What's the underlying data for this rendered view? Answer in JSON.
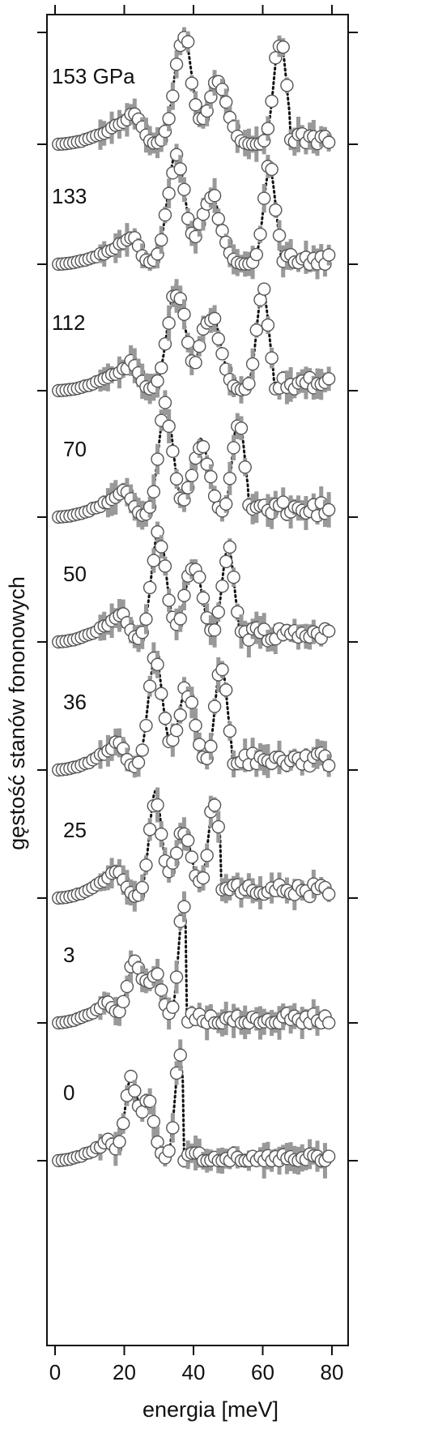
{
  "chart_data": {
    "type": "scatter",
    "title": "",
    "xlabel": "energia [meV]",
    "ylabel": "gęstość stanów fononowych",
    "xlim": [
      0,
      80
    ],
    "x_ticks": [
      "0",
      "20",
      "40",
      "60",
      "80"
    ],
    "grid": false,
    "legend": "none",
    "series_style": {
      "points": "open circles with grey error bars",
      "fit": "black dotted line"
    },
    "colors": {
      "points_edge": "#555555",
      "error_bars": "#999999",
      "fit": "#111111"
    },
    "series": [
      {
        "name": "153 GPa",
        "label": "153 GPa",
        "peaks": [
          {
            "x": 23,
            "y": 0.28,
            "w": 3
          },
          {
            "x": 37,
            "y": 1.0,
            "w": 3.5
          },
          {
            "x": 47,
            "y": 0.55,
            "w": 4
          },
          {
            "x": 65,
            "y": 0.95,
            "w": 2.5
          }
        ],
        "cutoff": 68,
        "tail": 0.05
      },
      {
        "name": "133",
        "label": "133",
        "peaks": [
          {
            "x": 22,
            "y": 0.25,
            "w": 3
          },
          {
            "x": 35,
            "y": 1.0,
            "w": 3.5
          },
          {
            "x": 45,
            "y": 0.62,
            "w": 4
          },
          {
            "x": 62,
            "y": 0.85,
            "w": 2.5
          }
        ],
        "cutoff": 65,
        "tail": 0.05
      },
      {
        "name": "112",
        "label": "112",
        "peaks": [
          {
            "x": 22,
            "y": 0.25,
            "w": 3
          },
          {
            "x": 35,
            "y": 0.95,
            "w": 3.5
          },
          {
            "x": 45,
            "y": 0.7,
            "w": 4
          },
          {
            "x": 60,
            "y": 0.9,
            "w": 2.5
          }
        ],
        "cutoff": 63,
        "tail": 0.07
      },
      {
        "name": "70",
        "label": "70",
        "peaks": [
          {
            "x": 20,
            "y": 0.25,
            "w": 3
          },
          {
            "x": 32,
            "y": 1.0,
            "w": 3
          },
          {
            "x": 42,
            "y": 0.7,
            "w": 3.5
          },
          {
            "x": 53,
            "y": 0.9,
            "w": 2.5
          }
        ],
        "cutoff": 56,
        "tail": 0.07
      },
      {
        "name": "50",
        "label": "50",
        "peaks": [
          {
            "x": 19,
            "y": 0.25,
            "w": 3
          },
          {
            "x": 30,
            "y": 1.0,
            "w": 3
          },
          {
            "x": 40,
            "y": 0.7,
            "w": 3.5
          },
          {
            "x": 50,
            "y": 0.85,
            "w": 2.5
          }
        ],
        "cutoff": 53,
        "tail": 0.08
      },
      {
        "name": "36",
        "label": "36",
        "peaks": [
          {
            "x": 18,
            "y": 0.25,
            "w": 3
          },
          {
            "x": 29,
            "y": 1.0,
            "w": 3
          },
          {
            "x": 38,
            "y": 0.72,
            "w": 3.5
          },
          {
            "x": 48,
            "y": 0.95,
            "w": 2.5
          }
        ],
        "cutoff": 51,
        "tail": 0.09
      },
      {
        "name": "25",
        "label": "25",
        "peaks": [
          {
            "x": 18,
            "y": 0.25,
            "w": 3
          },
          {
            "x": 29,
            "y": 0.95,
            "w": 2.5
          },
          {
            "x": 37,
            "y": 0.6,
            "w": 3.5
          },
          {
            "x": 46,
            "y": 0.85,
            "w": 2.5
          }
        ],
        "cutoff": 48,
        "tail": 0.07
      },
      {
        "name": "3",
        "label": "3",
        "peaks": [
          {
            "x": 15,
            "y": 0.18,
            "w": 3
          },
          {
            "x": 23,
            "y": 0.55,
            "w": 3
          },
          {
            "x": 29,
            "y": 0.42,
            "w": 3
          },
          {
            "x": 37,
            "y": 1.0,
            "w": 2
          }
        ],
        "cutoff": 38,
        "tail": 0.03
      },
      {
        "name": "0",
        "label": "0",
        "peaks": [
          {
            "x": 15,
            "y": 0.18,
            "w": 3
          },
          {
            "x": 22,
            "y": 0.75,
            "w": 2.5
          },
          {
            "x": 27,
            "y": 0.55,
            "w": 2.5
          },
          {
            "x": 36,
            "y": 0.9,
            "w": 2
          }
        ],
        "cutoff": 37,
        "tail": 0.01
      }
    ]
  }
}
